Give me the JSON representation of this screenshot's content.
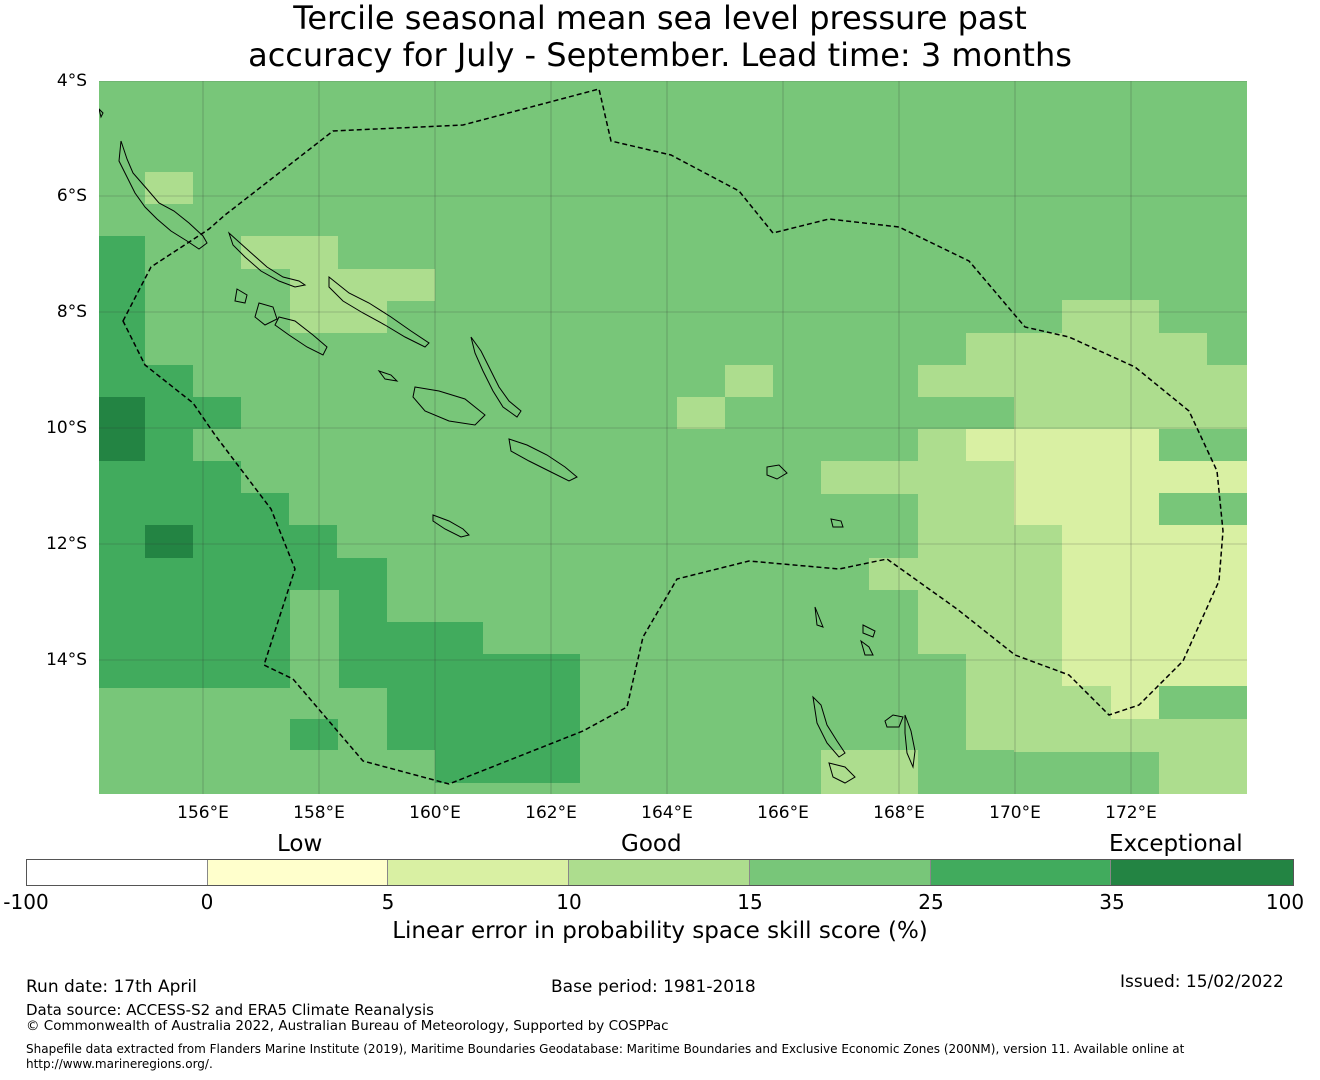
{
  "title": {
    "line1": "Tercile seasonal mean sea level pressure past",
    "line2": "accuracy for July - September. Lead time: 3 months"
  },
  "map": {
    "lat_labels": [
      "4°S",
      "6°S",
      "8°S",
      "10°S",
      "12°S",
      "14°S"
    ],
    "lon_labels": [
      "156°E",
      "158°E",
      "160°E",
      "162°E",
      "164°E",
      "166°E",
      "168°E",
      "170°E",
      "172°E"
    ],
    "legend_colors": {
      "band_0_5": "#feffd2",
      "band_5_10": "#d9efa3",
      "band_10_15": "#acdd8e",
      "band_15_25": "#78c679",
      "band_25_35": "#41ab5d",
      "band_35_100": "#238443"
    }
  },
  "legend": {
    "category_labels": {
      "low": "Low",
      "good": "Good",
      "exceptional": "Exceptional"
    },
    "ticks": [
      "-100",
      "0",
      "5",
      "10",
      "15",
      "25",
      "35",
      "100"
    ],
    "colors": [
      "#ffffff",
      "#ffffcc",
      "#d9f0a3",
      "#addd8e",
      "#78c679",
      "#41ab5d",
      "#238443"
    ],
    "label": "Linear error in probability space skill score (%)"
  },
  "footer": {
    "run_date": "Run date: 17th April",
    "base_period": "Base period: 1981-2018",
    "issued": "Issued: 15/02/2022",
    "data_source": "Data source: ACCESS-S2 and ERA5 Climate Reanalysis",
    "copyright": "© Commonwealth of Australia 2022, Australian Bureau of Meteorology, Supported by COSPPac",
    "shapefile_line1": "Shapefile data extracted from Flanders Marine Institute (2019), Maritime Boundaries Geodatabase: Maritime Boundaries and Exclusive Economic Zones (200NM), version 11. Available online at",
    "shapefile_line2": "http://www.marineregions.org/."
  }
}
